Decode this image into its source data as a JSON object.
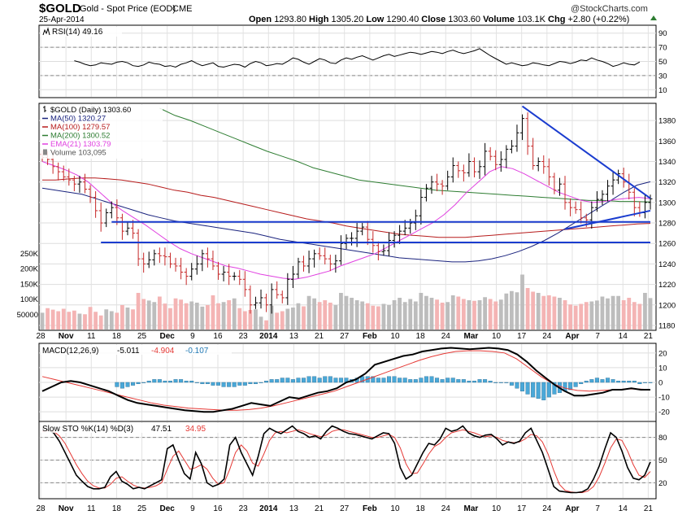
{
  "header": {
    "symbol": "$GOLD",
    "name": "Gold - Spot Price (EOD)",
    "exchange": "CME",
    "date": "25-Apr-2014",
    "watermark": "@StockCharts.com",
    "quote": {
      "open_label": "Open",
      "open": "1293.80",
      "high_label": "High",
      "high": "1305.20",
      "low_label": "Low",
      "low": "1290.40",
      "close_label": "Close",
      "close": "1303.60",
      "volume_label": "Volume",
      "volume": "103.1K",
      "chg_label": "Chg",
      "chg": "+2.80 (+0.22%)"
    }
  },
  "colors": {
    "price_bar": "#000000",
    "ma50": "#1a237e",
    "ma100": "#b71c1c",
    "ma200": "#2e7d32",
    "ema21": "#e040e0",
    "volume_up": "#bdbdbd",
    "volume_down": "#f4b4b4",
    "trendline": "#1a3ccf",
    "macd_line": "#000000",
    "macd_signal": "#e53935",
    "macd_hist": "#4aa8d8",
    "sto_k": "#000000",
    "sto_d": "#e53935",
    "change_up": "#2e7d32"
  },
  "x_axis": {
    "labels": [
      "28",
      "Nov",
      "11",
      "18",
      "25",
      "Dec",
      "9",
      "16",
      "23",
      "2014",
      "13",
      "21",
      "27",
      "Feb",
      "10",
      "18",
      "24",
      "Mar",
      "10",
      "17",
      "24",
      "Apr",
      "7",
      "14",
      "21"
    ],
    "bold": [
      "Nov",
      "Dec",
      "2014",
      "Feb",
      "Mar",
      "Apr"
    ]
  },
  "chart_data": [
    {
      "panel": "rsi",
      "type": "line",
      "legend": "RSI(14) 49.16",
      "y_ticks": [
        "90",
        "70",
        "50",
        "30",
        "10"
      ],
      "ylim": [
        0,
        100
      ],
      "guides": [
        70,
        30
      ],
      "values": [
        51,
        49,
        46,
        44,
        45,
        48,
        47,
        46,
        49,
        50,
        48,
        44,
        43,
        45,
        49,
        47,
        46,
        43,
        44,
        42,
        46,
        48,
        51,
        47,
        44,
        46,
        48,
        43,
        42,
        44,
        46,
        45,
        42,
        47,
        50,
        48,
        44,
        45,
        47,
        46,
        50,
        55,
        53,
        49,
        46,
        50,
        54,
        52,
        48,
        47,
        52,
        55,
        53,
        56,
        58,
        55,
        52,
        55,
        58,
        60,
        57,
        59,
        61,
        63,
        62,
        60,
        62,
        64,
        63,
        61,
        64,
        66,
        63,
        61,
        63,
        65,
        68,
        63,
        58,
        54,
        50,
        46,
        48,
        46,
        44,
        45,
        48,
        47,
        45,
        44,
        47,
        50,
        49,
        47,
        49,
        52,
        51,
        55,
        52,
        50,
        47,
        43,
        45,
        48,
        46,
        45,
        49.16
      ]
    },
    {
      "panel": "price",
      "type": "ohlc",
      "legend": [
        {
          "label": "$GOLD (Daily) 1303.60",
          "color_key": "price_bar"
        },
        {
          "label": "MA(50) 1320.27",
          "color_key": "ma50"
        },
        {
          "label": "MA(100) 1279.57",
          "color_key": "ma100"
        },
        {
          "label": "MA(200) 1300.52",
          "color_key": "ma200"
        },
        {
          "label": "EMA(21) 1303.79",
          "color_key": "ema21"
        },
        {
          "label": "Volume 103,095",
          "color_key": "volume_up"
        }
      ],
      "y_ticks": [
        "1380",
        "1360",
        "1340",
        "1320",
        "1300",
        "1280",
        "1260",
        "1240",
        "1220",
        "1200",
        "1180"
      ],
      "ylim": [
        1176,
        1396
      ],
      "volume_ticks": [
        "250K",
        "200K",
        "150K",
        "100K",
        "50000"
      ],
      "volume_max": 280000,
      "closes": [
        1344,
        1342,
        1335,
        1330,
        1325,
        1322,
        1318,
        1320,
        1313,
        1305,
        1292,
        1280,
        1290,
        1295,
        1285,
        1272,
        1275,
        1270,
        1245,
        1240,
        1244,
        1250,
        1248,
        1247,
        1240,
        1238,
        1232,
        1228,
        1235,
        1240,
        1250,
        1245,
        1238,
        1230,
        1232,
        1228,
        1228,
        1225,
        1215,
        1200,
        1202,
        1207,
        1200,
        1215,
        1210,
        1207,
        1225,
        1230,
        1242,
        1238,
        1245,
        1250,
        1248,
        1245,
        1240,
        1243,
        1260,
        1265,
        1265,
        1272,
        1276,
        1264,
        1258,
        1252,
        1253,
        1263,
        1268,
        1272,
        1275,
        1280,
        1287,
        1305,
        1314,
        1320,
        1318,
        1316,
        1325,
        1336,
        1331,
        1329,
        1340,
        1330,
        1335,
        1350,
        1345,
        1337,
        1342,
        1352,
        1355,
        1368,
        1382,
        1355,
        1336,
        1340,
        1335,
        1325,
        1312,
        1318,
        1300,
        1295,
        1293,
        1285,
        1283,
        1295,
        1303,
        1308,
        1316,
        1322,
        1328,
        1320,
        1310,
        1295,
        1290,
        1300,
        1303.6
      ],
      "ma50": [
        1314,
        1312,
        1310,
        1308,
        1304,
        1300,
        1296,
        1292,
        1288,
        1285,
        1282,
        1280,
        1278,
        1276,
        1274,
        1272,
        1270,
        1267,
        1264,
        1262,
        1260,
        1258,
        1256,
        1254,
        1252,
        1250,
        1248,
        1246,
        1245,
        1244,
        1243,
        1242,
        1242,
        1243,
        1245,
        1248,
        1252,
        1257,
        1263,
        1270,
        1278,
        1286,
        1294,
        1302,
        1310,
        1317,
        1320.27
      ],
      "ma100": [
        1322,
        1322,
        1323,
        1324,
        1324,
        1323,
        1322,
        1320,
        1318,
        1315,
        1312,
        1310,
        1307,
        1305,
        1302,
        1299,
        1296,
        1293,
        1290,
        1287,
        1284,
        1282,
        1280,
        1277,
        1275,
        1273,
        1271,
        1269,
        1268,
        1267,
        1266,
        1266,
        1266,
        1267,
        1268,
        1269,
        1270,
        1271,
        1272,
        1273,
        1274,
        1275,
        1276,
        1277,
        1278,
        1279,
        1279.57
      ],
      "ma200": [
        1392,
        1385,
        1380,
        1374,
        1368,
        1362,
        1356,
        1350,
        1345,
        1340,
        1334,
        1330,
        1326,
        1322,
        1320,
        1318,
        1316,
        1314,
        1312,
        1311,
        1310,
        1309,
        1308,
        1307,
        1306,
        1305,
        1304,
        1303,
        1302,
        1302,
        1301,
        1301,
        1300.52
      ],
      "ema21": [
        1340,
        1336,
        1332,
        1327,
        1320,
        1310,
        1300,
        1292,
        1285,
        1278,
        1270,
        1262,
        1255,
        1250,
        1246,
        1242,
        1238,
        1236,
        1233,
        1230,
        1228,
        1226,
        1225,
        1227,
        1230,
        1233,
        1238,
        1242,
        1246,
        1250,
        1256,
        1262,
        1268,
        1274,
        1280,
        1288,
        1298,
        1310,
        1320,
        1330,
        1335,
        1333,
        1328,
        1322,
        1316,
        1310,
        1306,
        1302,
        1300,
        1301,
        1303,
        1304,
        1305,
        1303.79
      ],
      "volume": [
        55,
        70,
        65,
        60,
        68,
        58,
        62,
        52,
        50,
        74,
        58,
        46,
        66,
        60,
        55,
        80,
        72,
        66,
        120,
        100,
        95,
        90,
        108,
        85,
        70,
        102,
        98,
        86,
        92,
        88,
        75,
        80,
        112,
        86,
        90,
        96,
        102,
        70,
        60,
        64,
        66,
        42,
        30,
        78,
        55,
        60,
        68,
        72,
        86,
        76,
        110,
        102,
        90,
        96,
        88,
        80,
        120,
        110,
        104,
        96,
        92,
        86,
        78,
        76,
        84,
        80,
        96,
        104,
        90,
        100,
        92,
        120,
        110,
        104,
        98,
        88,
        90,
        112,
        108,
        100,
        96,
        94,
        96,
        106,
        100,
        92,
        98,
        118,
        126,
        122,
        180,
        136,
        124,
        120,
        110,
        112,
        108,
        104,
        96,
        82,
        78,
        84,
        90,
        92,
        95,
        108,
        102,
        110,
        110,
        96,
        104,
        90,
        84,
        120,
        103.1
      ],
      "trendlines": [
        {
          "name": "upper-support",
          "from": [
            13,
            1281
          ],
          "to": [
            114,
            1281
          ]
        },
        {
          "name": "lower-support",
          "from": [
            11,
            1261
          ],
          "to": [
            114,
            1261
          ]
        },
        {
          "name": "down-trendline",
          "from": [
            90,
            1394
          ],
          "to": [
            114,
            1304
          ]
        },
        {
          "name": "rising-wedge-line",
          "from": [
            98,
            1274
          ],
          "to": [
            114,
            1292
          ]
        }
      ]
    },
    {
      "panel": "macd",
      "type": "line",
      "legend": [
        {
          "label": "MACD(12,26,9)",
          "color_key": "macd_line"
        },
        {
          "label": "-5.011",
          "color_key": "macd_line"
        },
        {
          "label": "-4.904",
          "color_key": "macd_signal"
        },
        {
          "label": "-0.107",
          "color_key": "macd_hist"
        }
      ],
      "y_ticks": [
        "20",
        "10",
        "0",
        "-10",
        "-20"
      ],
      "ylim": [
        -26,
        26
      ],
      "macd": [
        -6,
        -3,
        0,
        1,
        0,
        -2,
        -4,
        -6,
        -9,
        -12,
        -14,
        -15,
        -16,
        -17,
        -18,
        -19,
        -19.5,
        -20,
        -20,
        -19,
        -18,
        -16,
        -14,
        -15,
        -16,
        -13,
        -10,
        -11,
        -9,
        -7,
        -6,
        -4,
        0,
        2,
        6,
        12,
        14,
        16,
        18,
        19,
        21,
        22,
        23,
        23.5,
        23,
        22.5,
        23,
        23.5,
        23,
        22,
        19,
        14,
        8,
        3,
        -2,
        -6,
        -9,
        -9,
        -8,
        -7,
        -5,
        -5,
        -4,
        -5,
        -5
      ],
      "signal": [
        4,
        2,
        0,
        -2,
        -4,
        -6,
        -8,
        -10,
        -12,
        -14,
        -15.5,
        -16.5,
        -17.5,
        -18,
        -18.5,
        -19,
        -19,
        -18.5,
        -17.5,
        -16,
        -14,
        -12,
        -10,
        -8,
        -6,
        -3,
        0,
        3,
        6,
        9,
        12,
        15,
        17.5,
        19.5,
        21,
        21.5,
        21.5,
        21,
        20,
        16,
        10,
        4,
        -1,
        -4,
        -5.5,
        -6,
        -5.5,
        -5,
        -4.5,
        -4.5,
        -4.9
      ],
      "histogram": [
        -3,
        -4,
        -3,
        -2,
        -1,
        0,
        1,
        2,
        2,
        1,
        1,
        2,
        2,
        1,
        1,
        0,
        -1,
        -1,
        -2,
        -2,
        -3,
        -3,
        -3,
        -2,
        -2,
        -1,
        -1,
        0,
        1,
        2,
        2,
        3,
        3,
        2,
        3,
        3,
        4,
        4,
        3,
        4,
        4,
        3,
        3,
        3,
        2,
        3,
        4,
        4,
        4,
        3,
        3,
        4,
        4,
        3,
        3,
        2,
        2,
        3,
        4,
        4,
        3,
        2,
        3,
        3,
        2,
        2,
        1,
        1,
        2,
        2,
        1,
        0,
        0,
        0,
        -2,
        -4,
        -6,
        -8,
        -10,
        -11,
        -12,
        -10,
        -8,
        -7,
        -6,
        -5,
        -3,
        -1,
        1,
        2,
        3,
        2,
        3,
        2,
        1,
        1,
        1,
        1,
        -1,
        0,
        -0.1
      ]
    },
    {
      "panel": "stochastic",
      "type": "line",
      "legend": [
        {
          "label": "Slow STO %K(14) %D(3)",
          "color_key": "sto_k"
        },
        {
          "label": "47.51",
          "color_key": "sto_k"
        },
        {
          "label": "34.95",
          "color_key": "sto_d"
        }
      ],
      "y_ticks": [
        "80",
        "50",
        "20"
      ],
      "ylim": [
        0,
        100
      ],
      "guides": [
        80,
        20
      ],
      "k": [
        92,
        90,
        86,
        75,
        60,
        45,
        30,
        22,
        15,
        12,
        12,
        14,
        28,
        35,
        22,
        18,
        12,
        14,
        12,
        16,
        20,
        24,
        65,
        70,
        50,
        32,
        25,
        60,
        45,
        20,
        15,
        18,
        25,
        70,
        80,
        60,
        45,
        30,
        55,
        85,
        92,
        88,
        85,
        90,
        95,
        88,
        85,
        80,
        82,
        78,
        88,
        95,
        92,
        88,
        85,
        84,
        82,
        80,
        78,
        82,
        86,
        85,
        72,
        40,
        25,
        30,
        45,
        60,
        72,
        70,
        78,
        92,
        88,
        90,
        95,
        86,
        82,
        80,
        83,
        84,
        78,
        70,
        74,
        72,
        75,
        86,
        92,
        76,
        60,
        38,
        15,
        9,
        8,
        7,
        7,
        8,
        12,
        25,
        42,
        65,
        86,
        80,
        62,
        40,
        26,
        24,
        30,
        47.51
      ],
      "d": [
        88,
        89,
        88,
        82,
        72,
        58,
        44,
        32,
        22,
        16,
        13,
        13,
        18,
        26,
        28,
        22,
        17,
        14,
        13,
        14,
        16,
        20,
        38,
        55,
        62,
        50,
        38,
        40,
        44,
        38,
        26,
        18,
        20,
        38,
        60,
        70,
        62,
        46,
        42,
        58,
        76,
        86,
        88,
        86,
        88,
        90,
        88,
        85,
        83,
        81,
        83,
        88,
        90,
        90,
        88,
        86,
        84,
        82,
        80,
        80,
        82,
        84,
        80,
        66,
        45,
        32,
        33,
        45,
        58,
        68,
        72,
        80,
        86,
        88,
        90,
        88,
        86,
        83,
        81,
        82,
        80,
        76,
        74,
        73,
        74,
        78,
        84,
        82,
        74,
        58,
        36,
        18,
        10,
        8,
        7,
        7,
        9,
        15,
        28,
        46,
        66,
        78,
        76,
        62,
        44,
        30,
        27,
        34.95
      ]
    }
  ]
}
